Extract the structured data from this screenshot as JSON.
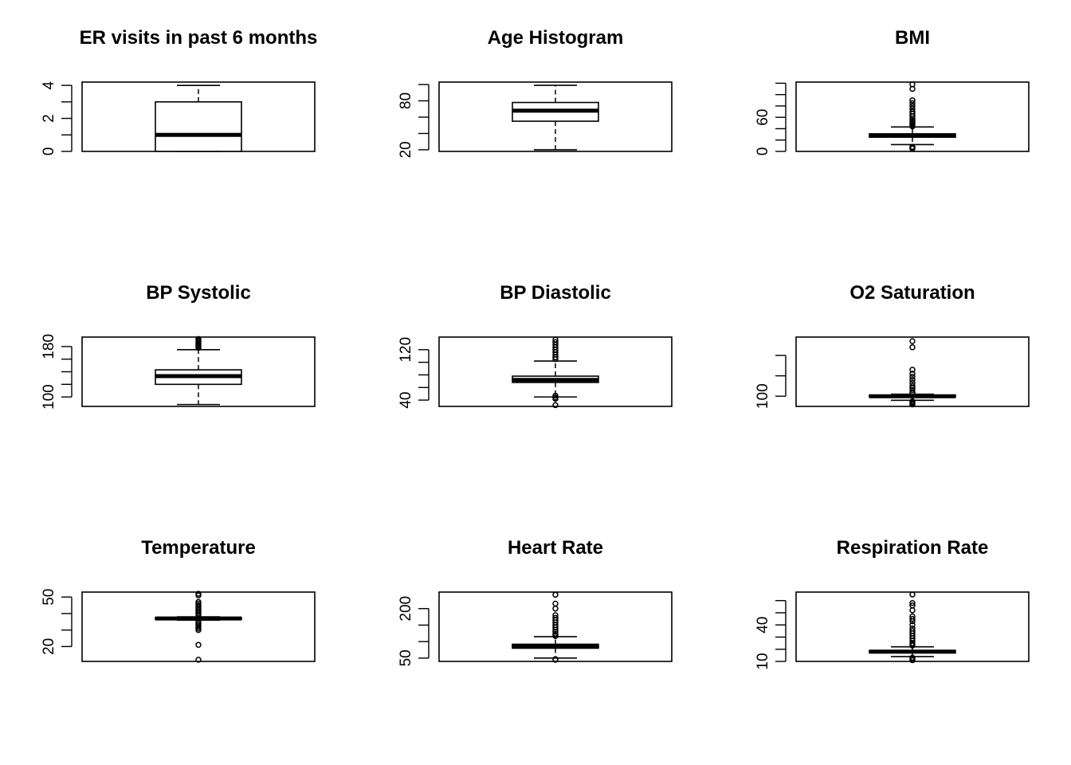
{
  "chart_data": [
    {
      "type": "boxplot",
      "title": "ER visits in past 6 months",
      "ylim": [
        0,
        4.2
      ],
      "yticks": [
        0,
        1,
        2,
        3,
        4
      ],
      "ytick_labels": [
        "0",
        "",
        "2",
        "",
        "4"
      ],
      "box": {
        "min": 0,
        "q1": 0,
        "median": 1,
        "q3": 3,
        "max": 4
      },
      "outliers": []
    },
    {
      "type": "boxplot",
      "title": "Age Histogram",
      "ylim": [
        18,
        103
      ],
      "yticks": [
        20,
        40,
        60,
        80,
        100
      ],
      "ytick_labels": [
        "20",
        "",
        "",
        "80",
        ""
      ],
      "box": {
        "min": 20,
        "q1": 55,
        "median": 68,
        "q3": 78,
        "max": 99
      },
      "outliers": []
    },
    {
      "type": "boxplot",
      "title": "BMI",
      "ylim": [
        0,
        122
      ],
      "yticks": [
        0,
        20,
        40,
        60,
        80,
        100,
        120
      ],
      "ytick_labels": [
        "0",
        "",
        "",
        "60",
        "",
        "",
        ""
      ],
      "box": {
        "min": 12,
        "q1": 25,
        "median": 28,
        "q3": 31,
        "max": 43
      },
      "outliers": [
        118,
        110,
        90,
        85,
        80,
        75,
        70,
        66,
        62,
        58,
        55,
        52,
        50,
        48,
        46,
        44,
        8,
        6,
        5
      ]
    },
    {
      "type": "boxplot",
      "title": "BP Systolic",
      "ylim": [
        85,
        195
      ],
      "yticks": [
        100,
        120,
        140,
        160,
        180
      ],
      "ytick_labels": [
        "100",
        "",
        "",
        "",
        "180"
      ],
      "box": {
        "min": 88,
        "q1": 120,
        "median": 133,
        "q3": 143,
        "max": 175
      },
      "outliers": [
        192,
        190,
        188,
        186,
        184,
        182,
        180,
        178
      ]
    },
    {
      "type": "boxplot",
      "title": "BP Diastolic",
      "ylim": [
        30,
        140
      ],
      "yticks": [
        40,
        60,
        80,
        100,
        120
      ],
      "ytick_labels": [
        "40",
        "",
        "",
        "",
        "120"
      ],
      "box": {
        "min": 45,
        "q1": 68,
        "median": 72,
        "q3": 78,
        "max": 102
      },
      "outliers": [
        136,
        132,
        128,
        124,
        120,
        116,
        112,
        108,
        105,
        47,
        44,
        42,
        32
      ]
    },
    {
      "type": "boxplot",
      "title": "O2 Saturation",
      "ylim": [
        90,
        158
      ],
      "yticks": [
        100,
        120,
        140
      ],
      "ytick_labels": [
        "100",
        "",
        ""
      ],
      "box": {
        "min": 96,
        "q1": 99,
        "median": 100,
        "q3": 101,
        "max": 102
      },
      "outliers": [
        154,
        148,
        126,
        122,
        119,
        116,
        113,
        110,
        108,
        106,
        104,
        103,
        95,
        94,
        93,
        92
      ]
    },
    {
      "type": "boxplot",
      "title": "Temperature",
      "ylim": [
        11,
        53
      ],
      "yticks": [
        20,
        30,
        40,
        50
      ],
      "ytick_labels": [
        "20",
        "",
        "",
        "50"
      ],
      "box": {
        "min": 36,
        "q1": 36.5,
        "median": 37,
        "q3": 37.5,
        "max": 38
      },
      "outliers": [
        52,
        51,
        47,
        46,
        45,
        44,
        43,
        42,
        41,
        40,
        39,
        35,
        34,
        33,
        32,
        31,
        30,
        21,
        12
      ]
    },
    {
      "type": "boxplot",
      "title": "Heart Rate",
      "ylim": [
        40,
        250
      ],
      "yticks": [
        50,
        100,
        150,
        200
      ],
      "ytick_labels": [
        "50",
        "",
        "",
        "200"
      ],
      "box": {
        "min": 50,
        "q1": 80,
        "median": 85,
        "q3": 92,
        "max": 115
      },
      "outliers": [
        242,
        215,
        200,
        180,
        172,
        165,
        158,
        150,
        143,
        136,
        130,
        124,
        119,
        117,
        47,
        45
      ]
    },
    {
      "type": "boxplot",
      "title": "Respiration Rate",
      "ylim": [
        10,
        67
      ],
      "yticks": [
        10,
        20,
        30,
        40,
        50,
        60
      ],
      "ytick_labels": [
        "10",
        "",
        "",
        "40",
        "",
        ""
      ],
      "box": {
        "min": 14,
        "q1": 17,
        "median": 18,
        "q3": 19,
        "max": 22
      },
      "outliers": [
        65,
        58,
        56,
        52,
        47,
        45,
        43,
        40,
        37,
        35,
        33,
        31,
        29,
        27,
        25,
        24,
        23,
        13,
        12,
        11
      ]
    }
  ]
}
